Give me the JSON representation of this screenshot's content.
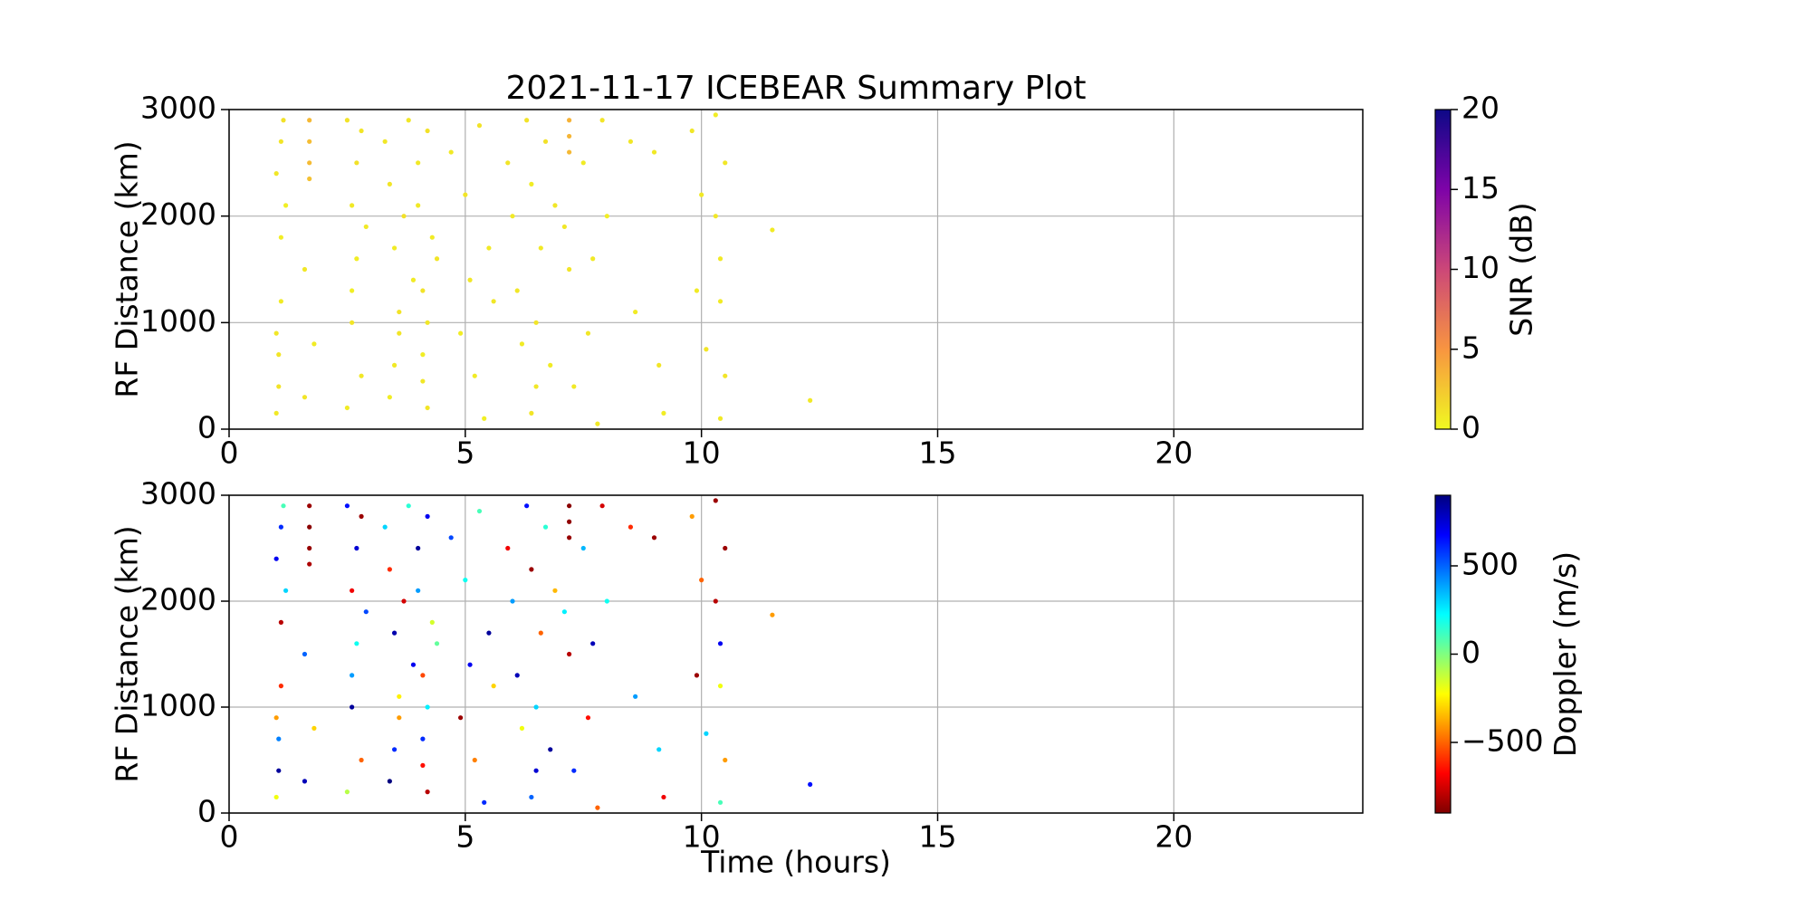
{
  "chart_data": [
    {
      "type": "scatter",
      "title": "2021-11-17 ICEBEAR Summary Plot",
      "ylabel": "RF Distance (km)",
      "xlim": [
        0,
        24
      ],
      "ylim": [
        0,
        3000
      ],
      "xticks": [
        0,
        5,
        10,
        15,
        20
      ],
      "yticks": [
        0,
        1000,
        2000,
        3000
      ],
      "grid": true,
      "colorbar_label": "SNR (dB)",
      "clim": [
        0,
        20
      ],
      "cticks": [
        0,
        5,
        10,
        15,
        20
      ],
      "colormap": "plasma_r",
      "x": [
        1.0,
        1.05,
        1.1,
        1.0,
        1.15,
        1.1,
        1.05,
        1.2,
        1.0,
        1.1,
        1.7,
        1.7,
        1.7,
        1.7,
        1.6,
        1.8,
        1.6,
        2.5,
        2.6,
        2.7,
        2.6,
        2.8,
        2.5,
        2.7,
        2.6,
        2.8,
        2.9,
        3.3,
        3.4,
        3.5,
        3.6,
        3.5,
        3.4,
        3.7,
        3.8,
        3.6,
        3.9,
        4.0,
        4.1,
        4.2,
        4.1,
        4.2,
        4.0,
        4.3,
        4.2,
        4.1,
        4.4,
        4.7,
        4.9,
        5.0,
        5.1,
        5.2,
        5.3,
        5.5,
        5.6,
        5.4,
        5.9,
        6.0,
        6.1,
        6.2,
        6.3,
        6.4,
        6.5,
        6.5,
        6.6,
        6.7,
        6.8,
        6.9,
        6.4,
        7.2,
        7.2,
        7.2,
        7.2,
        7.3,
        7.1,
        7.5,
        7.6,
        7.7,
        7.9,
        8.0,
        7.8,
        8.5,
        8.6,
        9.0,
        9.2,
        9.1,
        9.8,
        9.9,
        10.0,
        10.1,
        10.3,
        10.3,
        10.4,
        10.4,
        10.5,
        10.5,
        10.4,
        11.5,
        12.3
      ],
      "values": [
        150,
        700,
        1800,
        2400,
        2900,
        1200,
        400,
        2100,
        900,
        2700,
        2900,
        2700,
        2500,
        2350,
        1500,
        800,
        300,
        2900,
        2100,
        1600,
        1000,
        500,
        200,
        2500,
        1300,
        2800,
        1900,
        2700,
        2300,
        1700,
        1100,
        600,
        300,
        2000,
        2900,
        900,
        1400,
        2500,
        1300,
        1000,
        700,
        200,
        2100,
        1800,
        2800,
        450,
        1600,
        2600,
        900,
        2200,
        1400,
        500,
        2850,
        1700,
        1200,
        100,
        2500,
        2000,
        1300,
        800,
        2900,
        2300,
        1000,
        400,
        1700,
        2700,
        600,
        2100,
        150,
        2900,
        2750,
        2600,
        1500,
        400,
        1900,
        2500,
        900,
        1600,
        2900,
        2000,
        50,
        2700,
        1100,
        2600,
        150,
        600,
        2800,
        1300,
        2200,
        750,
        2950,
        2000,
        1600,
        1200,
        500,
        2500,
        100,
        1870,
        270
      ],
      "color_values": [
        0.8,
        1.0,
        0.6,
        0.9,
        1.2,
        0.7,
        1.1,
        0.5,
        0.9,
        1.0,
        3.2,
        3.0,
        3.1,
        2.8,
        0.9,
        0.7,
        1.0,
        1.1,
        0.8,
        0.6,
        1.0,
        0.9,
        0.7,
        1.2,
        0.5,
        1.0,
        0.8,
        0.9,
        1.0,
        0.7,
        1.1,
        0.8,
        0.6,
        1.2,
        0.9,
        1.0,
        0.7,
        0.8,
        1.1,
        0.9,
        0.6,
        1.0,
        0.8,
        0.7,
        1.2,
        0.9,
        1.0,
        0.8,
        0.6,
        1.0,
        0.9,
        0.7,
        1.1,
        0.8,
        0.9,
        0.5,
        1.0,
        0.8,
        0.9,
        0.7,
        1.1,
        0.6,
        1.0,
        0.9,
        0.8,
        1.2,
        0.7,
        0.9,
        1.0,
        3.5,
        3.4,
        3.2,
        1.0,
        0.8,
        0.9,
        0.7,
        0.9,
        0.8,
        1.0,
        0.6,
        0.8,
        0.9,
        0.7,
        0.8,
        0.6,
        1.0,
        0.9,
        0.7,
        0.8,
        1.0,
        0.6,
        0.9,
        0.8,
        0.7,
        1.0,
        0.9,
        0.8,
        0.7,
        0.8
      ]
    },
    {
      "type": "scatter",
      "xlabel": "Time (hours)",
      "ylabel": "RF Distance (km)",
      "xlim": [
        0,
        24
      ],
      "ylim": [
        0,
        3000
      ],
      "xticks": [
        0,
        5,
        10,
        15,
        20
      ],
      "yticks": [
        0,
        1000,
        2000,
        3000
      ],
      "grid": true,
      "colorbar_label": "Doppler (m/s)",
      "clim": [
        -900,
        900
      ],
      "cticks": [
        {
          "value": -500,
          "label": "−500"
        },
        0,
        500
      ],
      "colormap": "jet_r",
      "x": [
        1.0,
        1.05,
        1.1,
        1.0,
        1.15,
        1.1,
        1.05,
        1.2,
        1.0,
        1.1,
        1.7,
        1.7,
        1.7,
        1.7,
        1.6,
        1.8,
        1.6,
        2.5,
        2.6,
        2.7,
        2.6,
        2.8,
        2.5,
        2.7,
        2.6,
        2.8,
        2.9,
        3.3,
        3.4,
        3.5,
        3.6,
        3.5,
        3.4,
        3.7,
        3.8,
        3.6,
        3.9,
        4.0,
        4.1,
        4.2,
        4.1,
        4.2,
        4.0,
        4.3,
        4.2,
        4.1,
        4.4,
        4.7,
        4.9,
        5.0,
        5.1,
        5.2,
        5.3,
        5.5,
        5.6,
        5.4,
        5.9,
        6.0,
        6.1,
        6.2,
        6.3,
        6.4,
        6.5,
        6.5,
        6.6,
        6.7,
        6.8,
        6.9,
        6.4,
        7.2,
        7.2,
        7.2,
        7.2,
        7.3,
        7.1,
        7.5,
        7.6,
        7.7,
        7.9,
        8.0,
        7.8,
        8.5,
        8.6,
        9.0,
        9.2,
        9.1,
        9.8,
        9.9,
        10.0,
        10.1,
        10.3,
        10.3,
        10.4,
        10.4,
        10.5,
        10.5,
        10.4,
        11.5,
        12.3
      ],
      "values": [
        150,
        700,
        1800,
        2400,
        2900,
        1200,
        400,
        2100,
        900,
        2700,
        2900,
        2700,
        2500,
        2350,
        1500,
        800,
        300,
        2900,
        2100,
        1600,
        1000,
        500,
        200,
        2500,
        1300,
        2800,
        1900,
        2700,
        2300,
        1700,
        1100,
        600,
        300,
        2000,
        2900,
        900,
        1400,
        2500,
        1300,
        1000,
        700,
        200,
        2100,
        1800,
        2800,
        450,
        1600,
        2600,
        900,
        2200,
        1400,
        500,
        2850,
        1700,
        1200,
        100,
        2500,
        2000,
        1300,
        800,
        2900,
        2300,
        1000,
        400,
        1700,
        2700,
        600,
        2100,
        150,
        2900,
        2750,
        2600,
        1500,
        400,
        1900,
        2500,
        900,
        1600,
        2900,
        2000,
        50,
        2700,
        1100,
        2600,
        150,
        600,
        2800,
        1300,
        2200,
        750,
        2950,
        2000,
        1600,
        1200,
        500,
        2500,
        100,
        1870,
        270
      ],
      "color_values": [
        -200,
        450,
        -800,
        700,
        100,
        -600,
        850,
        300,
        -400,
        600,
        -850,
        -880,
        -860,
        -820,
        500,
        -300,
        800,
        650,
        -700,
        200,
        850,
        -500,
        -100,
        750,
        400,
        -850,
        550,
        300,
        -600,
        820,
        -250,
        600,
        900,
        -750,
        150,
        -400,
        700,
        850,
        -550,
        250,
        600,
        -800,
        400,
        -150,
        700,
        -650,
        50,
        550,
        -850,
        200,
        700,
        -450,
        100,
        850,
        -300,
        600,
        -700,
        400,
        800,
        -200,
        650,
        -850,
        300,
        750,
        -500,
        150,
        850,
        -350,
        500,
        -880,
        -870,
        -860,
        -800,
        600,
        250,
        350,
        -650,
        800,
        -750,
        200,
        -500,
        -600,
        400,
        -850,
        -700,
        300,
        -400,
        -850,
        -500,
        300,
        -850,
        -800,
        700,
        -200,
        -400,
        -850,
        100,
        -400,
        650
      ]
    }
  ]
}
